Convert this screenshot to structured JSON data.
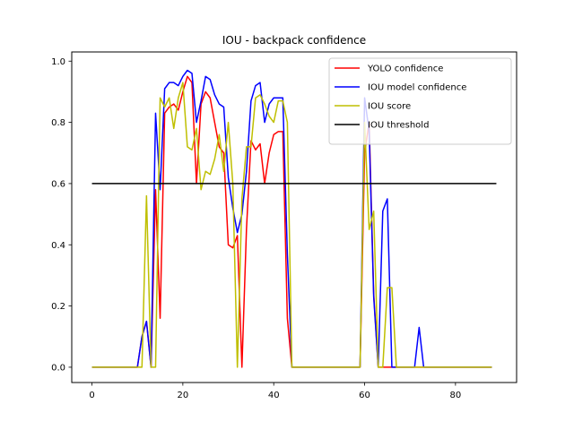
{
  "chart_data": {
    "type": "line",
    "title": "IOU - backpack confidence",
    "xlabel": "",
    "ylabel": "",
    "xlim": [
      -4.45,
      93.45
    ],
    "ylim": [
      -0.05,
      1.03
    ],
    "xticks": [
      0,
      20,
      40,
      60,
      80
    ],
    "yticks": [
      0.0,
      0.2,
      0.4,
      0.6,
      0.8,
      1.0
    ],
    "xtick_labels": [
      "0",
      "20",
      "40",
      "60",
      "80"
    ],
    "ytick_labels": [
      "0.0",
      "0.2",
      "0.4",
      "0.6",
      "0.8",
      "1.0"
    ],
    "grid": false,
    "legend_position": "top-right",
    "series": [
      {
        "name": "YOLO confidence",
        "color": "#ff0000",
        "x": [
          0,
          1,
          2,
          3,
          4,
          5,
          6,
          7,
          8,
          9,
          10,
          11,
          12,
          13,
          14,
          15,
          16,
          17,
          18,
          19,
          20,
          21,
          22,
          23,
          24,
          25,
          26,
          27,
          28,
          29,
          30,
          31,
          32,
          33,
          34,
          35,
          36,
          37,
          38,
          39,
          40,
          41,
          42,
          43,
          44,
          45,
          46,
          47,
          48,
          49,
          50,
          51,
          52,
          53,
          54,
          55,
          56,
          57,
          58,
          59,
          60,
          61,
          62,
          63,
          64,
          65,
          66,
          67,
          68,
          69,
          70,
          71,
          72,
          73,
          74,
          75,
          76,
          77,
          78,
          79,
          80,
          81,
          82,
          83,
          84,
          85,
          86,
          87,
          88
        ],
        "y": [
          0,
          0,
          0,
          0,
          0,
          0,
          0,
          0,
          0,
          0,
          0,
          0.1,
          0.15,
          0,
          0.58,
          0.16,
          0.83,
          0.85,
          0.86,
          0.84,
          0.9,
          0.95,
          0.93,
          0.6,
          0.86,
          0.9,
          0.88,
          0.8,
          0.72,
          0.7,
          0.4,
          0.39,
          0.43,
          0,
          0.45,
          0.74,
          0.71,
          0.73,
          0.6,
          0.7,
          0.76,
          0.77,
          0.77,
          0.16,
          0,
          0,
          0,
          0,
          0,
          0,
          0,
          0,
          0,
          0,
          0,
          0,
          0,
          0,
          0,
          0,
          0.7,
          0.8,
          0.24,
          0,
          0,
          0,
          0,
          0,
          0,
          0,
          0,
          0,
          0,
          0,
          0,
          0,
          0,
          0,
          0,
          0,
          0,
          0,
          0,
          0,
          0,
          0,
          0,
          0,
          0
        ]
      },
      {
        "name": "IOU model confidence",
        "color": "#0000ff",
        "x": [
          0,
          1,
          2,
          3,
          4,
          5,
          6,
          7,
          8,
          9,
          10,
          11,
          12,
          13,
          14,
          15,
          16,
          17,
          18,
          19,
          20,
          21,
          22,
          23,
          24,
          25,
          26,
          27,
          28,
          29,
          30,
          31,
          32,
          33,
          34,
          35,
          36,
          37,
          38,
          39,
          40,
          41,
          42,
          43,
          44,
          45,
          46,
          47,
          48,
          49,
          50,
          51,
          52,
          53,
          54,
          55,
          56,
          57,
          58,
          59,
          60,
          61,
          62,
          63,
          64,
          65,
          66,
          67,
          68,
          69,
          70,
          71,
          72,
          73,
          74,
          75,
          76,
          77,
          78,
          79,
          80,
          81,
          82,
          83,
          84,
          85,
          86,
          87,
          88
        ],
        "y": [
          0,
          0,
          0,
          0,
          0,
          0,
          0,
          0,
          0,
          0,
          0,
          0.1,
          0.15,
          0,
          0.83,
          0.58,
          0.91,
          0.93,
          0.93,
          0.92,
          0.95,
          0.97,
          0.96,
          0.8,
          0.87,
          0.95,
          0.94,
          0.89,
          0.86,
          0.85,
          0.62,
          0.52,
          0.44,
          0.5,
          0.64,
          0.87,
          0.92,
          0.93,
          0.8,
          0.86,
          0.88,
          0.88,
          0.88,
          0.37,
          0,
          0,
          0,
          0,
          0,
          0,
          0,
          0,
          0,
          0,
          0,
          0,
          0,
          0,
          0,
          0,
          0.88,
          0.77,
          0.23,
          0,
          0.51,
          0.55,
          0,
          0,
          0,
          0,
          0,
          0,
          0.13,
          0,
          0,
          0,
          0,
          0,
          0,
          0,
          0,
          0,
          0,
          0,
          0,
          0,
          0,
          0,
          0
        ]
      },
      {
        "name": "IOU score",
        "color": "#bfbf00",
        "x": [
          0,
          1,
          2,
          3,
          4,
          5,
          6,
          7,
          8,
          9,
          10,
          11,
          12,
          13,
          14,
          15,
          16,
          17,
          18,
          19,
          20,
          21,
          22,
          23,
          24,
          25,
          26,
          27,
          28,
          29,
          30,
          31,
          32,
          33,
          34,
          35,
          36,
          37,
          38,
          39,
          40,
          41,
          42,
          43,
          44,
          45,
          46,
          47,
          48,
          49,
          50,
          51,
          52,
          53,
          54,
          55,
          56,
          57,
          58,
          59,
          60,
          61,
          62,
          63,
          64,
          65,
          66,
          67,
          68,
          69,
          70,
          71,
          72,
          73,
          74,
          75,
          76,
          77,
          78,
          79,
          80,
          81,
          82,
          83,
          84,
          85,
          86,
          87,
          88
        ],
        "y": [
          0,
          0,
          0,
          0,
          0,
          0,
          0,
          0,
          0,
          0,
          0,
          0,
          0.56,
          0,
          0,
          0.88,
          0.85,
          0.88,
          0.78,
          0.88,
          0.93,
          0.72,
          0.71,
          0.78,
          0.58,
          0.64,
          0.63,
          0.68,
          0.76,
          0.64,
          0.8,
          0.6,
          0,
          0.55,
          0.72,
          0.72,
          0.88,
          0.89,
          0.86,
          0.82,
          0.8,
          0.87,
          0.87,
          0.8,
          0,
          0,
          0,
          0,
          0,
          0,
          0,
          0,
          0,
          0,
          0,
          0,
          0,
          0,
          0,
          0,
          0.8,
          0.45,
          0.51,
          0,
          0,
          0.26,
          0.26,
          0,
          0,
          0,
          0,
          0,
          0,
          0,
          0,
          0,
          0,
          0,
          0,
          0,
          0,
          0,
          0,
          0,
          0,
          0,
          0,
          0,
          0
        ]
      },
      {
        "name": "IOU threshold",
        "color": "#000000",
        "x": [
          0,
          89
        ],
        "y": [
          0.6,
          0.6
        ]
      }
    ]
  }
}
